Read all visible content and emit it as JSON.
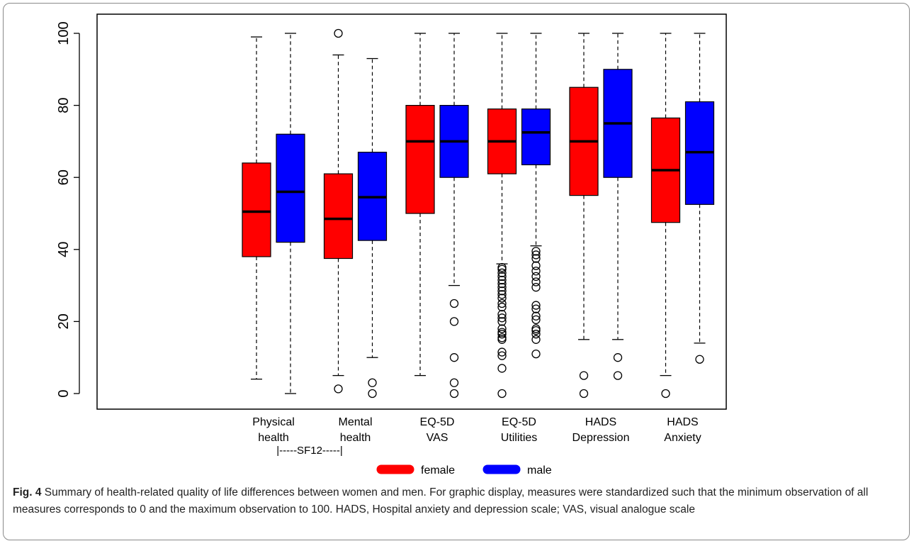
{
  "chart_data": {
    "type": "box",
    "title": "",
    "xlabel": "",
    "ylabel": "",
    "ylim": [
      0,
      100
    ],
    "yticks": [
      0,
      20,
      40,
      60,
      80,
      100
    ],
    "categories": [
      {
        "line1": "Physical",
        "line2": "health"
      },
      {
        "line1": "Mental",
        "line2": "health"
      },
      {
        "line1": "EQ-5D",
        "line2": "VAS"
      },
      {
        "line1": "EQ-5D",
        "line2": "Utilities"
      },
      {
        "line1": "HADS",
        "line2": "Depression"
      },
      {
        "line1": "HADS",
        "line2": "Anxiety"
      }
    ],
    "group_annotation": "|-----SF12-----|",
    "series": [
      {
        "name": "female",
        "color": "#ff0000",
        "boxes": [
          {
            "whisker_low": 4,
            "q1": 38,
            "median": 50.5,
            "q3": 64,
            "whisker_high": 99,
            "outliers": []
          },
          {
            "whisker_low": 5,
            "q1": 37.5,
            "median": 48.5,
            "q3": 61,
            "whisker_high": 94,
            "outliers": [
              1.3,
              100
            ]
          },
          {
            "whisker_low": 5,
            "q1": 50,
            "median": 70,
            "q3": 80,
            "whisker_high": 100,
            "outliers": []
          },
          {
            "whisker_low": 36,
            "q1": 61,
            "median": 70,
            "q3": 79,
            "whisker_high": 100,
            "outliers": [
              0,
              7,
              10.5,
              11.5,
              15,
              15.5,
              16.5,
              17,
              18,
              20,
              21,
              22,
              24,
              25,
              26.5,
              27.5,
              28.5,
              29.5,
              30.5,
              31.5,
              32.5,
              33.5,
              34.5,
              35
            ]
          },
          {
            "whisker_low": 15,
            "q1": 55,
            "median": 70,
            "q3": 85,
            "whisker_high": 100,
            "outliers": [
              0,
              5
            ]
          },
          {
            "whisker_low": 5,
            "q1": 47.5,
            "median": 62,
            "q3": 76.5,
            "whisker_high": 100,
            "outliers": [
              0
            ]
          }
        ]
      },
      {
        "name": "male",
        "color": "#0000ff",
        "boxes": [
          {
            "whisker_low": 0,
            "q1": 42,
            "median": 56,
            "q3": 72,
            "whisker_high": 100,
            "outliers": []
          },
          {
            "whisker_low": 10,
            "q1": 42.5,
            "median": 54.5,
            "q3": 67,
            "whisker_high": 93,
            "outliers": [
              0,
              3
            ]
          },
          {
            "whisker_low": 30,
            "q1": 60,
            "median": 70,
            "q3": 80,
            "whisker_high": 100,
            "outliers": [
              0,
              3,
              10,
              20,
              25
            ]
          },
          {
            "whisker_low": 41,
            "q1": 63.5,
            "median": 72.5,
            "q3": 79,
            "whisker_high": 100,
            "outliers": [
              11,
              15,
              16.5,
              17.5,
              18,
              20.5,
              21.5,
              23.5,
              24.5,
              29.5,
              31,
              32.5,
              34,
              35.5,
              37.5,
              38.5,
              39.5
            ]
          },
          {
            "whisker_low": 15,
            "q1": 60,
            "median": 75,
            "q3": 90,
            "whisker_high": 100,
            "outliers": [
              5,
              10
            ]
          },
          {
            "whisker_low": 14,
            "q1": 52.5,
            "median": 67,
            "q3": 81,
            "whisker_high": 100,
            "outliers": [
              9.5
            ]
          }
        ]
      }
    ],
    "legend": {
      "placement": "bottom-center"
    }
  },
  "caption": {
    "label": "Fig. 4",
    "text": " Summary of health-related quality of life differences between women and men. For graphic display, measures were standardized such that the minimum observation of all measures corresponds to 0 and the maximum observation to 100. HADS, Hospital anxiety and depression scale; VAS, visual analogue scale"
  }
}
